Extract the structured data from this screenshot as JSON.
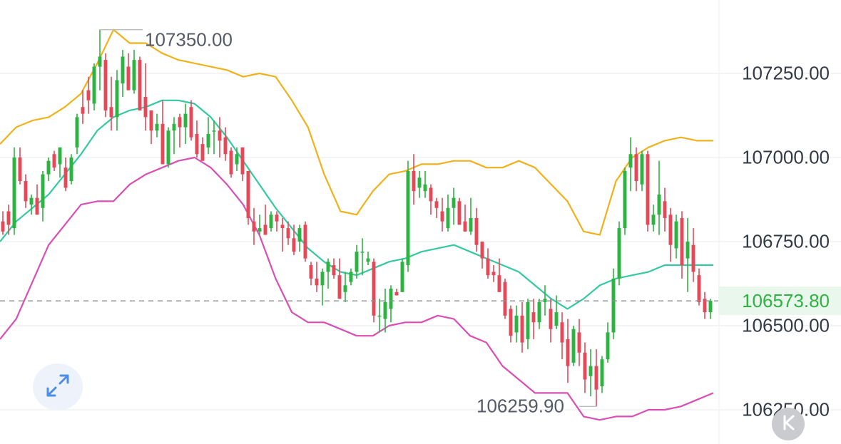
{
  "colors": {
    "up": "#2db341",
    "down": "#e24a5a",
    "boll_upper": "#f0b21c",
    "boll_mid": "#35c9a2",
    "boll_lower": "#d94fb5",
    "grid": "#eef0f3",
    "dashed": "#8c8f96"
  },
  "axis": {
    "labels": [
      "107250.00",
      "107000.00",
      "106750.00",
      "106500.00",
      "106250.00"
    ],
    "current_price": "106573.80",
    "high_marker": "107350.00",
    "low_marker": "106259.90"
  },
  "icons": {
    "expand": "expand-arrows-icon",
    "back": "collapse-k-icon"
  },
  "chart_data": {
    "type": "candlestick",
    "ylim": [
      106200,
      107460
    ],
    "y_ticks": [
      107250,
      107000,
      106750,
      106500,
      106250
    ],
    "current_price": 106573.8,
    "candles": [
      [
        106810,
        106840,
        106770,
        106780
      ],
      [
        106840,
        106860,
        106770,
        106800
      ],
      [
        106790,
        107030,
        106770,
        107000
      ],
      [
        107000,
        107030,
        106920,
        106930
      ],
      [
        106930,
        106950,
        106850,
        106870
      ],
      [
        106860,
        106890,
        106830,
        106880
      ],
      [
        106880,
        106920,
        106840,
        106830
      ],
      [
        106850,
        106960,
        106810,
        106950
      ],
      [
        106950,
        107000,
        106930,
        106990
      ],
      [
        107010,
        107020,
        106960,
        106970
      ],
      [
        106980,
        107030,
        106940,
        107030
      ],
      [
        106970,
        107000,
        106900,
        106910
      ],
      [
        106930,
        107010,
        106920,
        107000
      ],
      [
        107030,
        107130,
        107010,
        107120
      ],
      [
        107150,
        107200,
        107100,
        107130
      ],
      [
        107200,
        107240,
        107130,
        107170
      ],
      [
        107160,
        107280,
        107140,
        107270
      ],
      [
        107270,
        107380,
        107200,
        107300
      ],
      [
        107290,
        107310,
        107120,
        107140
      ],
      [
        107150,
        107240,
        107080,
        107120
      ],
      [
        107120,
        107260,
        107080,
        107230
      ],
      [
        107220,
        107320,
        107180,
        107300
      ],
      [
        107270,
        107310,
        107200,
        107200
      ],
      [
        107200,
        107320,
        107190,
        107290
      ],
      [
        107290,
        107300,
        107140,
        107140
      ],
      [
        107180,
        107280,
        107080,
        107120
      ],
      [
        107140,
        107140,
        107040,
        107080
      ],
      [
        107080,
        107130,
        107060,
        107100
      ],
      [
        107100,
        107170,
        106980,
        106980
      ],
      [
        106980,
        107090,
        106970,
        107080
      ],
      [
        107080,
        107120,
        107010,
        107100
      ],
      [
        107120,
        107130,
        107030,
        107090
      ],
      [
        107090,
        107160,
        107040,
        107130
      ],
      [
        107150,
        107170,
        107050,
        107060
      ],
      [
        107070,
        107110,
        107000,
        107010
      ],
      [
        107040,
        107060,
        106990,
        106990
      ],
      [
        107030,
        107120,
        107010,
        107070
      ],
      [
        107080,
        107110,
        107010,
        107080
      ],
      [
        107080,
        107120,
        107000,
        107050
      ],
      [
        107060,
        107090,
        106990,
        107010
      ],
      [
        107020,
        107030,
        106940,
        106950
      ],
      [
        106980,
        107030,
        106960,
        107010
      ],
      [
        107030,
        107030,
        106930,
        106950
      ],
      [
        106960,
        106960,
        106800,
        106820
      ],
      [
        106810,
        106850,
        106740,
        106780
      ],
      [
        106780,
        106830,
        106770,
        106790
      ],
      [
        106800,
        106860,
        106770,
        106770
      ],
      [
        106790,
        106840,
        106780,
        106830
      ],
      [
        106830,
        106840,
        106780,
        106810
      ],
      [
        106800,
        106820,
        106720,
        106790
      ],
      [
        106790,
        106810,
        106740,
        106760
      ],
      [
        106760,
        106800,
        106710,
        106720
      ],
      [
        106750,
        106800,
        106720,
        106790
      ],
      [
        106800,
        106810,
        106690,
        106700
      ],
      [
        106680,
        106690,
        106620,
        106640
      ],
      [
        106640,
        106690,
        106600,
        106620
      ],
      [
        106620,
        106670,
        106560,
        106660
      ],
      [
        106660,
        106700,
        106610,
        106690
      ],
      [
        106680,
        106700,
        106640,
        106650
      ],
      [
        106650,
        106700,
        106580,
        106580
      ],
      [
        106600,
        106660,
        106570,
        106620
      ],
      [
        106630,
        106670,
        106620,
        106660
      ],
      [
        106660,
        106740,
        106640,
        106720
      ],
      [
        106720,
        106760,
        106650,
        106720
      ],
      [
        106690,
        106720,
        106680,
        106700
      ],
      [
        106690,
        106700,
        106510,
        106530
      ],
      [
        106530,
        106580,
        106480,
        106530
      ],
      [
        106520,
        106610,
        106480,
        106570
      ],
      [
        106550,
        106620,
        106510,
        106610
      ],
      [
        106600,
        106610,
        106590,
        106590
      ],
      [
        106600,
        106700,
        106600,
        106690
      ],
      [
        106680,
        106990,
        106660,
        106960
      ],
      [
        106960,
        107010,
        106860,
        106900
      ],
      [
        106910,
        106960,
        106880,
        106940
      ],
      [
        106900,
        106960,
        106880,
        106920
      ],
      [
        106910,
        106920,
        106830,
        106870
      ],
      [
        106870,
        106880,
        106820,
        106850
      ],
      [
        106840,
        106880,
        106780,
        106810
      ],
      [
        106790,
        106890,
        106780,
        106850
      ],
      [
        106850,
        106910,
        106800,
        106880
      ],
      [
        106870,
        106880,
        106800,
        106800
      ],
      [
        106810,
        106860,
        106780,
        106780
      ],
      [
        106780,
        106880,
        106770,
        106820
      ],
      [
        106820,
        106850,
        106720,
        106740
      ],
      [
        106750,
        106740,
        106670,
        106700
      ],
      [
        106700,
        106730,
        106640,
        106650
      ],
      [
        106660,
        106680,
        106630,
        106650
      ],
      [
        106650,
        106700,
        106600,
        106600
      ],
      [
        106630,
        106640,
        106520,
        106530
      ],
      [
        106550,
        106560,
        106450,
        106470
      ],
      [
        106480,
        106560,
        106450,
        106530
      ],
      [
        106530,
        106570,
        106420,
        106450
      ],
      [
        106460,
        106580,
        106430,
        106570
      ],
      [
        106540,
        106580,
        106460,
        106510
      ],
      [
        106510,
        106580,
        106490,
        106570
      ],
      [
        106570,
        106620,
        106530,
        106580
      ],
      [
        106550,
        106580,
        106450,
        106490
      ],
      [
        106500,
        106590,
        106490,
        106540
      ],
      [
        106510,
        106540,
        106400,
        106450
      ],
      [
        106460,
        106520,
        106330,
        106380
      ],
      [
        106390,
        106500,
        106380,
        106490
      ],
      [
        106480,
        106520,
        106380,
        106420
      ],
      [
        106420,
        106450,
        106300,
        106340
      ],
      [
        106350,
        106430,
        106290,
        106380
      ],
      [
        106380,
        106430,
        106260,
        106310
      ],
      [
        106320,
        106410,
        106300,
        106400
      ],
      [
        106400,
        106510,
        106390,
        106480
      ],
      [
        106480,
        106670,
        106460,
        106640
      ],
      [
        106640,
        106810,
        106620,
        106790
      ],
      [
        106790,
        106970,
        106770,
        106960
      ],
      [
        106970,
        107060,
        106900,
        107010
      ],
      [
        107010,
        107030,
        106900,
        106930
      ],
      [
        106920,
        107020,
        106900,
        107010
      ],
      [
        107010,
        107020,
        106780,
        106800
      ],
      [
        106800,
        106860,
        106780,
        106830
      ],
      [
        106830,
        106990,
        106770,
        106890
      ],
      [
        106870,
        106910,
        106780,
        106820
      ],
      [
        106830,
        106850,
        106690,
        106740
      ],
      [
        106730,
        106830,
        106700,
        106810
      ],
      [
        106820,
        106840,
        106640,
        106680
      ],
      [
        106700,
        106820,
        106600,
        106750
      ],
      [
        106740,
        106790,
        106630,
        106660
      ],
      [
        106650,
        106670,
        106560,
        106570
      ],
      [
        106580,
        106600,
        106520,
        106540
      ],
      [
        106540,
        106580,
        106520,
        106574
      ]
    ],
    "bollinger": {
      "upper": [
        107040,
        107090,
        107110,
        107120,
        107150,
        107190,
        107280,
        107380,
        107340,
        107340,
        107310,
        107290,
        107280,
        107270,
        107260,
        107240,
        107250,
        107240,
        107170,
        107090,
        106950,
        106840,
        106830,
        106900,
        106950,
        106960,
        106980,
        106980,
        106990,
        106990,
        106970,
        106970,
        106990,
        106970,
        106920,
        106870,
        106780,
        106770,
        106930,
        107000,
        107030,
        107050,
        107060,
        107050,
        107050
      ],
      "mid": [
        106750,
        106810,
        106850,
        106890,
        106950,
        107010,
        107080,
        107120,
        107140,
        107150,
        107170,
        107170,
        107160,
        107120,
        107060,
        106990,
        106920,
        106850,
        106790,
        106730,
        106690,
        106660,
        106650,
        106670,
        106690,
        106700,
        106720,
        106730,
        106740,
        106720,
        106700,
        106680,
        106660,
        106620,
        106580,
        106550,
        106580,
        106620,
        106640,
        106650,
        106660,
        106680,
        106680,
        106680,
        106680
      ],
      "lower": [
        106460,
        106520,
        106630,
        106740,
        106800,
        106860,
        106870,
        106870,
        106920,
        106950,
        106970,
        106990,
        107000,
        106970,
        106920,
        106860,
        106770,
        106640,
        106540,
        106510,
        106510,
        106490,
        106470,
        106470,
        106500,
        106510,
        106510,
        106530,
        106520,
        106470,
        106450,
        106380,
        106340,
        106300,
        106300,
        106300,
        106230,
        106220,
        106230,
        106230,
        106250,
        106250,
        106260,
        106280,
        106300
      ]
    },
    "high_marker": 107350.0,
    "low_marker": 106259.9
  }
}
